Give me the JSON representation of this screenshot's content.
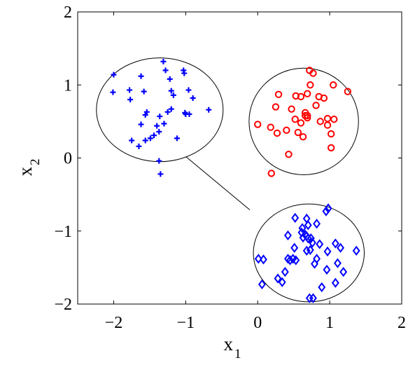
{
  "chart_data": {
    "type": "scatter",
    "xlabel": "x",
    "xlabel_sub": "1",
    "ylabel": "x",
    "ylabel_sub": "2",
    "xlim": [
      -2.5,
      2
    ],
    "ylim": [
      -2,
      2
    ],
    "xticks": [
      -2,
      -1,
      0,
      1,
      2
    ],
    "yticks": [
      -2,
      -1,
      0,
      1,
      2
    ],
    "xtick_labels": [
      "−2",
      "−1",
      "0",
      "1",
      "2"
    ],
    "ytick_labels": [
      "−2",
      "−1",
      "0",
      "1",
      "2"
    ],
    "grid": false,
    "legend": false,
    "series": [
      {
        "marker": "plus",
        "color": "#0000ff",
        "points": [
          [
            -2.0,
            1.14
          ],
          [
            -2.01,
            0.9
          ],
          [
            -1.78,
            0.93
          ],
          [
            -1.77,
            0.8
          ],
          [
            -1.62,
            1.12
          ],
          [
            -1.58,
            0.91
          ],
          [
            -1.56,
            0.59
          ],
          [
            -1.54,
            0.63
          ],
          [
            -1.62,
            0.46
          ],
          [
            -1.31,
            1.32
          ],
          [
            -1.28,
            1.2
          ],
          [
            -1.22,
            1.08
          ],
          [
            -1.2,
            0.92
          ],
          [
            -1.17,
            0.86
          ],
          [
            -1.02,
            1.16
          ],
          [
            -1.03,
            1.2
          ],
          [
            -0.96,
            0.93
          ],
          [
            -0.9,
            0.82
          ],
          [
            -0.68,
            0.66
          ],
          [
            -1.2,
            0.67
          ],
          [
            -1.25,
            0.63
          ],
          [
            -1.36,
            0.57
          ],
          [
            -1.3,
            0.47
          ],
          [
            -1.4,
            0.44
          ],
          [
            -1.37,
            0.36
          ],
          [
            -1.44,
            0.31
          ],
          [
            -1.49,
            0.27
          ],
          [
            -1.56,
            0.24
          ],
          [
            -1.75,
            0.24
          ],
          [
            -1.65,
            0.16
          ],
          [
            -1.12,
            0.27
          ],
          [
            -1.0,
            0.6
          ],
          [
            -0.95,
            0.6
          ],
          [
            -1.01,
            0.62
          ],
          [
            -1.37,
            -0.04
          ],
          [
            -1.35,
            -0.22
          ]
        ]
      },
      {
        "marker": "circle",
        "color": "#ff0000",
        "points": [
          [
            0.72,
            1.2
          ],
          [
            0.77,
            1.16
          ],
          [
            0.73,
            1.0
          ],
          [
            0.69,
            0.88
          ],
          [
            0.6,
            0.84
          ],
          [
            0.53,
            0.85
          ],
          [
            0.29,
            0.87
          ],
          [
            0.85,
            0.84
          ],
          [
            0.92,
            0.82
          ],
          [
            1.05,
            1.0
          ],
          [
            1.25,
            0.91
          ],
          [
            0.47,
            0.67
          ],
          [
            0.25,
            0.7
          ],
          [
            0.81,
            0.72
          ],
          [
            0.66,
            0.62
          ],
          [
            0.69,
            0.58
          ],
          [
            0.69,
            0.55
          ],
          [
            0.52,
            0.53
          ],
          [
            0.6,
            0.48
          ],
          [
            0.66,
            0.58
          ],
          [
            0.0,
            0.46
          ],
          [
            0.18,
            0.42
          ],
          [
            0.4,
            0.38
          ],
          [
            0.56,
            0.35
          ],
          [
            0.63,
            0.29
          ],
          [
            0.87,
            0.5
          ],
          [
            0.97,
            0.54
          ],
          [
            1.06,
            0.53
          ],
          [
            0.97,
            0.45
          ],
          [
            1.02,
            0.33
          ],
          [
            0.27,
            0.34
          ],
          [
            0.43,
            0.05
          ],
          [
            1.02,
            0.14
          ],
          [
            0.19,
            -0.21
          ]
        ]
      },
      {
        "marker": "diamond",
        "color": "#0000ff",
        "points": [
          [
            0.98,
            -0.69
          ],
          [
            0.95,
            -0.73
          ],
          [
            0.52,
            -0.82
          ],
          [
            0.68,
            -0.83
          ],
          [
            0.82,
            -0.9
          ],
          [
            0.7,
            -0.92
          ],
          [
            0.62,
            -0.96
          ],
          [
            0.61,
            -1.02
          ],
          [
            0.66,
            -1.05
          ],
          [
            0.68,
            -1.07
          ],
          [
            0.7,
            -1.1
          ],
          [
            0.42,
            -1.06
          ],
          [
            0.63,
            -1.09
          ],
          [
            0.74,
            -1.1
          ],
          [
            0.76,
            -1.16
          ],
          [
            1.08,
            -1.17
          ],
          [
            0.86,
            -1.18
          ],
          [
            0.73,
            -1.26
          ],
          [
            0.68,
            -1.27
          ],
          [
            0.51,
            -1.23
          ],
          [
            0.97,
            -1.28
          ],
          [
            1.15,
            -1.23
          ],
          [
            1.37,
            -1.27
          ],
          [
            0.01,
            -1.38
          ],
          [
            0.08,
            -1.39
          ],
          [
            0.42,
            -1.38
          ],
          [
            0.49,
            -1.38
          ],
          [
            0.45,
            -1.4
          ],
          [
            0.53,
            -1.4
          ],
          [
            0.82,
            -1.38
          ],
          [
            0.79,
            -1.45
          ],
          [
            1.11,
            -1.44
          ],
          [
            0.38,
            -1.56
          ],
          [
            0.96,
            -1.53
          ],
          [
            1.19,
            -1.56
          ],
          [
            0.06,
            -1.73
          ],
          [
            0.28,
            -1.65
          ],
          [
            0.34,
            -1.7
          ],
          [
            0.89,
            -1.77
          ],
          [
            1.08,
            -1.71
          ],
          [
            0.72,
            -1.92
          ],
          [
            0.77,
            -1.92
          ]
        ]
      }
    ],
    "circles": [
      {
        "cx": -1.36,
        "cy": 0.66,
        "rx": 0.88,
        "ry": 0.71
      },
      {
        "cx": 0.64,
        "cy": 0.5,
        "rx": 0.76,
        "ry": 0.73
      },
      {
        "cx": 0.71,
        "cy": -1.3,
        "rx": 0.77,
        "ry": 0.67
      }
    ],
    "connector": {
      "from": [
        -1.0,
        0.02
      ],
      "to": [
        -0.11,
        -0.71
      ]
    }
  }
}
